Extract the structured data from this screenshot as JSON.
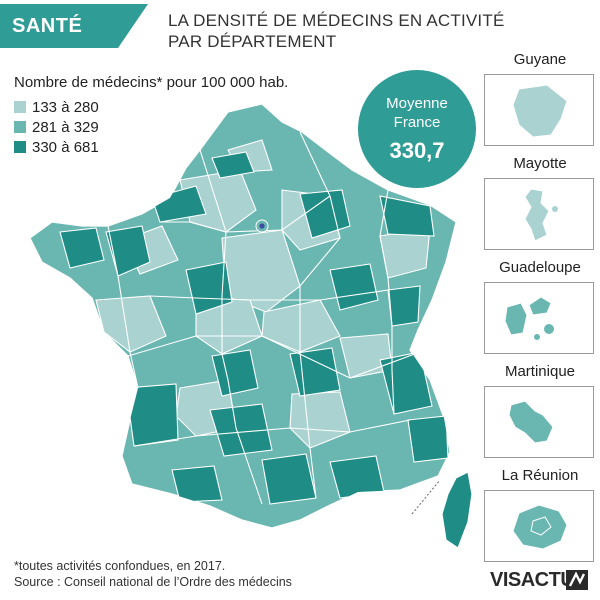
{
  "banner": {
    "tag": "SANTÉ",
    "title_line1": "LA DENSITÉ DE MÉDECINS EN ACTIVITÉ",
    "title_line2": "PAR DÉPARTEMENT"
  },
  "legend": {
    "title": "Nombre de médecins* pour 100 000 hab.",
    "classes": [
      {
        "label": "133 à 280",
        "color": "#a9d2d0"
      },
      {
        "label": "281 à 329",
        "color": "#6ab6b1"
      },
      {
        "label": "330 à 681",
        "color": "#1f8d86"
      }
    ]
  },
  "average": {
    "label": "Moyenne France",
    "value": "330,7",
    "color": "#2f9c95"
  },
  "overseas": [
    {
      "name": "Guyane",
      "class": 0
    },
    {
      "name": "Mayotte",
      "class": 0
    },
    {
      "name": "Guadeloupe",
      "class": 1
    },
    {
      "name": "Martinique",
      "class": 1
    },
    {
      "name": "La Réunion",
      "class": 1
    }
  ],
  "map": {
    "region": "France métropolitaine",
    "paris_marker_color": "#3a4fa0"
  },
  "footnote": {
    "line1": "*toutes activités confondues, en 2017.",
    "line2": "Source : Conseil national de l’Ordre des médecins"
  },
  "logo": {
    "text": "VISACTU"
  }
}
